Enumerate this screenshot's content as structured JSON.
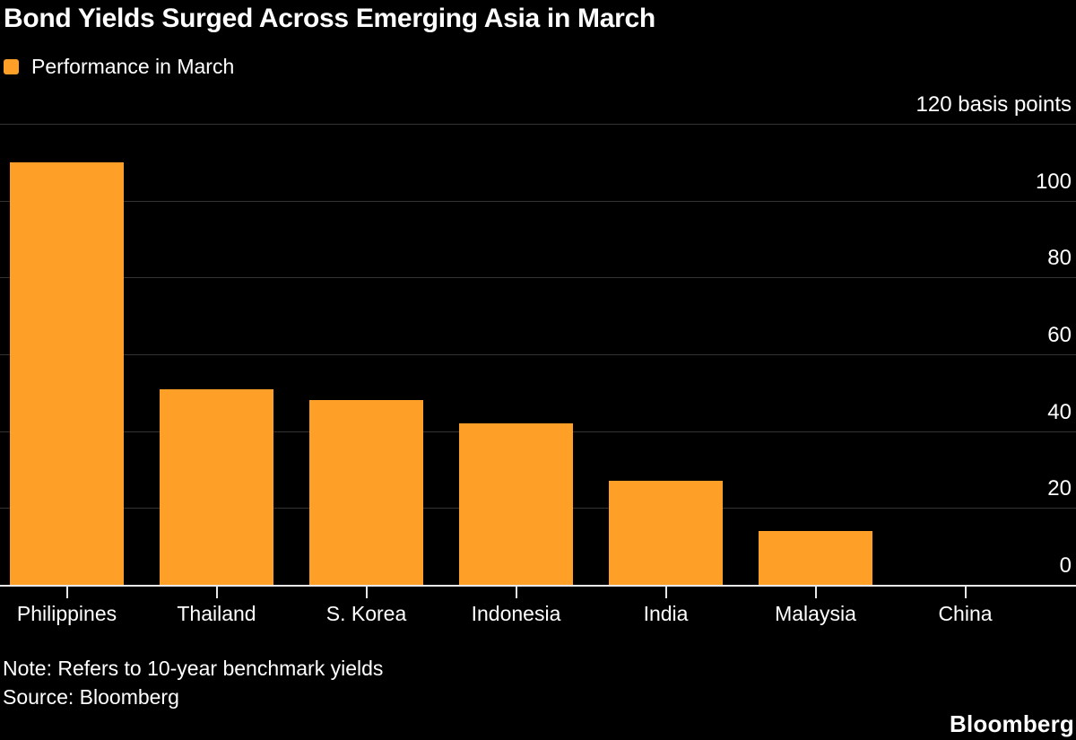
{
  "title": "Bond Yields Surged Across Emerging Asia in March",
  "legend": {
    "label": "Performance in March"
  },
  "colors": {
    "background": "#000000",
    "bar": "#FEA028",
    "gridline": "#333333",
    "axis_line": "#E8E8E8",
    "text": "#FFFFFF"
  },
  "chart_data": {
    "type": "bar",
    "title": "Bond Yields Surged Across Emerging Asia in March",
    "series_name": "Performance in March",
    "categories": [
      "Philippines",
      "Thailand",
      "S. Korea",
      "Indonesia",
      "India",
      "Malaysia",
      "China"
    ],
    "values": [
      110,
      51,
      48,
      42,
      27,
      14,
      0
    ],
    "unit": "basis points",
    "ylim": [
      0,
      120
    ],
    "y_ticks": [
      0,
      20,
      40,
      60,
      80,
      100,
      120
    ],
    "y_tick_labels": [
      "0",
      "20",
      "40",
      "60",
      "80",
      "100",
      "120 basis points"
    ],
    "axis_side": "right",
    "grid": true,
    "legend_position": "top-left"
  },
  "footer": {
    "note": "Note: Refers to 10-year benchmark yields",
    "source": "Source: Bloomberg",
    "brand": "Bloomberg"
  }
}
